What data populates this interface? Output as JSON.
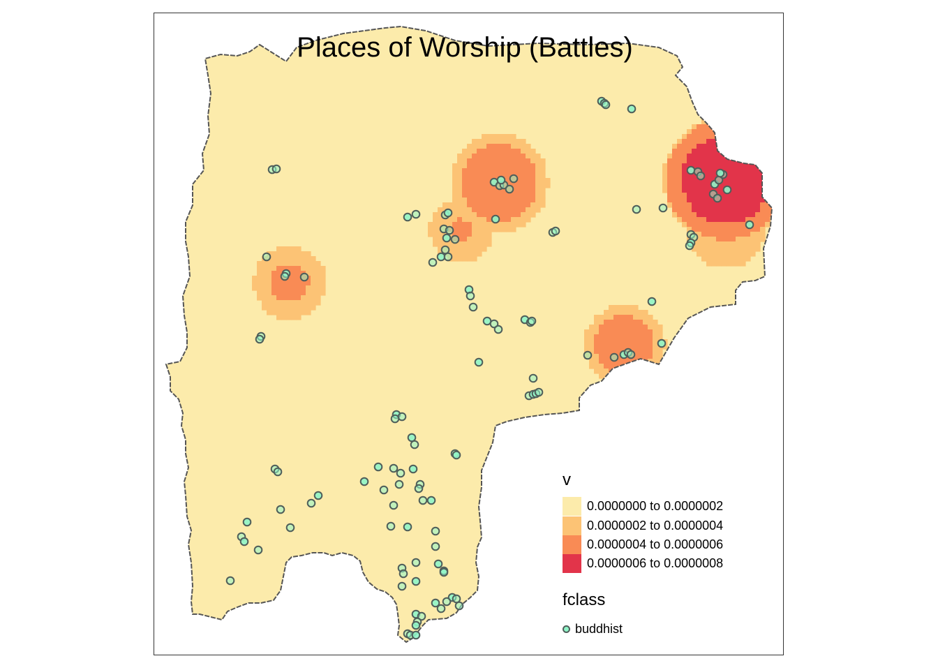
{
  "title": "Places of Worship (Battles)",
  "legend": {
    "density_title": "v",
    "classes": [
      {
        "label": "0.0000000 to 0.0000002",
        "color": "#fcebab"
      },
      {
        "label": "0.0000002 to 0.0000004",
        "color": "#fcc375"
      },
      {
        "label": "0.0000004 to 0.0000006",
        "color": "#f98b55"
      },
      {
        "label": "0.0000006 to 0.0000008",
        "color": "#e2344a"
      }
    ],
    "point_title": "fclass",
    "point_label": "buddhist",
    "point_fill": "#8ff5c8",
    "point_stroke": "#4f5e5a"
  },
  "colors": {
    "background": "#fcebab",
    "boundary": "#555555",
    "frame": "#333333"
  }
}
